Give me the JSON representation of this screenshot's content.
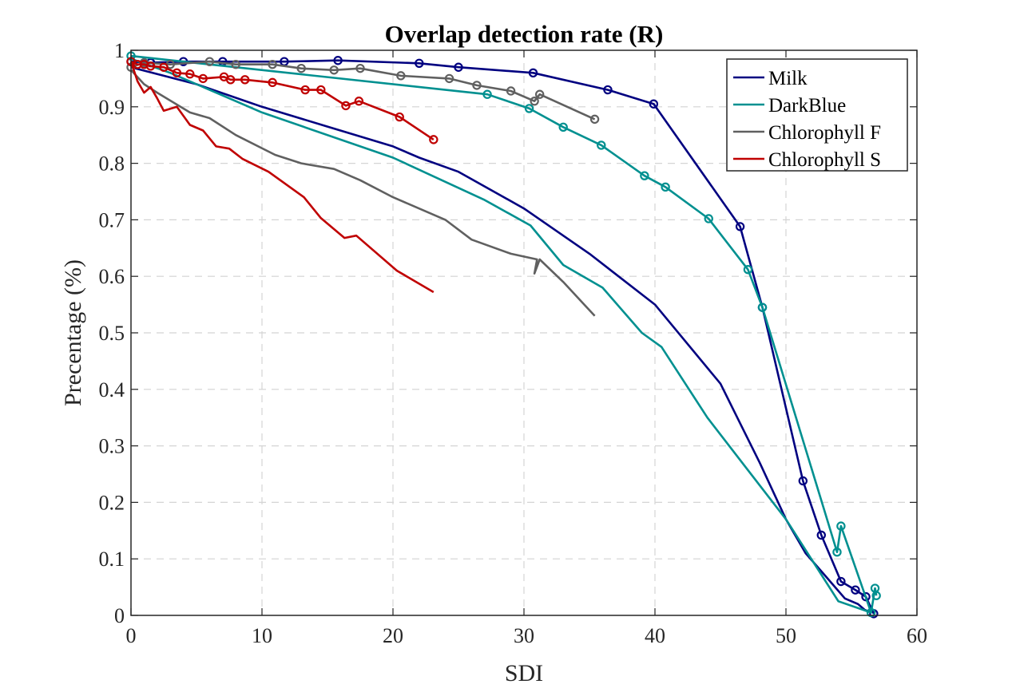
{
  "chart_data": {
    "type": "line",
    "title": "Overlap detection rate (R)",
    "xlabel": "SDI",
    "ylabel": "Precentage (%)",
    "xlim": [
      0,
      60
    ],
    "ylim": [
      0,
      1
    ],
    "xticks": [
      0,
      10,
      20,
      30,
      40,
      50,
      60
    ],
    "yticks": [
      0,
      0.1,
      0.2,
      0.3,
      0.4,
      0.5,
      0.6,
      0.7,
      0.8,
      0.9,
      1
    ],
    "xtick_labels": [
      "0",
      "10",
      "20",
      "30",
      "40",
      "50",
      "60"
    ],
    "ytick_labels": [
      "0",
      "0.1",
      "0.2",
      "0.3",
      "0.4",
      "0.5",
      "0.6",
      "0.7",
      "0.8",
      "0.9",
      "1"
    ],
    "grid": true,
    "legend_position": "top-right",
    "series": [
      {
        "name": "Milk",
        "color": "#000080",
        "marker": "none",
        "x": [
          0,
          5,
          10,
          15,
          20,
          22,
          25,
          30,
          35,
          40,
          45,
          46.5,
          48,
          50,
          51.5,
          53,
          54.5,
          55.5,
          56,
          56.5
        ],
        "y": [
          0.97,
          0.94,
          0.9,
          0.865,
          0.83,
          0.81,
          0.785,
          0.72,
          0.64,
          0.55,
          0.41,
          0.34,
          0.27,
          0.17,
          0.11,
          0.07,
          0.03,
          0.02,
          0.01,
          0.005
        ]
      },
      {
        "name": "Milk",
        "color": "#000080",
        "marker": "circle",
        "x": [
          0,
          1.5,
          4,
          7,
          11.7,
          15.8,
          22,
          25,
          30.7,
          36.4,
          39.9,
          46.5,
          48.2,
          51.3,
          52.7,
          54.2,
          55.3,
          56.1,
          56.7
        ],
        "y": [
          0.98,
          0.978,
          0.98,
          0.98,
          0.98,
          0.982,
          0.977,
          0.97,
          0.96,
          0.93,
          0.905,
          0.688,
          0.545,
          0.238,
          0.142,
          0.06,
          0.045,
          0.033,
          0.003
        ]
      },
      {
        "name": "DarkBlue",
        "color": "#009090",
        "marker": "none",
        "x": [
          0,
          3,
          10,
          20,
          27,
          30.5,
          33,
          36,
          39,
          40.5,
          44,
          47,
          50,
          54,
          56.5
        ],
        "y": [
          0.985,
          0.96,
          0.89,
          0.81,
          0.735,
          0.69,
          0.62,
          0.58,
          0.5,
          0.475,
          0.35,
          0.26,
          0.17,
          0.025,
          0.005
        ]
      },
      {
        "name": "DarkBlue",
        "color": "#009090",
        "marker": "circle",
        "x": [
          0,
          27.2,
          30.4,
          33,
          35.9,
          39.2,
          40.8,
          44.1,
          47.1,
          48.2,
          53.9,
          54.2,
          56.5,
          56.8,
          56.9
        ],
        "y": [
          0.99,
          0.922,
          0.897,
          0.864,
          0.832,
          0.778,
          0.758,
          0.702,
          0.612,
          0.545,
          0.112,
          0.158,
          0.005,
          0.048,
          0.035
        ]
      },
      {
        "name": "Chlorophyll F",
        "color": "#606060",
        "marker": "none",
        "x": [
          0,
          1,
          2,
          4.5,
          6,
          8,
          11,
          13,
          15.5,
          17.5,
          20,
          24,
          26,
          29,
          31,
          30.8,
          31.2,
          33,
          35.4
        ],
        "y": [
          0.965,
          0.94,
          0.925,
          0.89,
          0.88,
          0.85,
          0.815,
          0.8,
          0.79,
          0.77,
          0.74,
          0.7,
          0.665,
          0.64,
          0.63,
          0.605,
          0.63,
          0.59,
          0.53
        ]
      },
      {
        "name": "Chlorophyll F",
        "color": "#606060",
        "marker": "circle",
        "x": [
          0,
          1,
          3,
          6,
          8,
          10.8,
          13,
          15.5,
          17.5,
          20.6,
          24.3,
          26.4,
          29,
          30.8,
          31.2,
          35.4
        ],
        "y": [
          0.97,
          0.978,
          0.975,
          0.98,
          0.975,
          0.975,
          0.968,
          0.965,
          0.968,
          0.955,
          0.95,
          0.938,
          0.928,
          0.91,
          0.922,
          0.878
        ]
      },
      {
        "name": "Chlorophyll S",
        "color": "#C00000",
        "marker": "none",
        "x": [
          0,
          0.5,
          1,
          1.5,
          2,
          2.5,
          3.5,
          4.5,
          5.5,
          6.5,
          7.5,
          8.5,
          10.5,
          13.2,
          14.5,
          16.3,
          17.2,
          20.3,
          23.1
        ],
        "y": [
          0.98,
          0.945,
          0.925,
          0.935,
          0.915,
          0.893,
          0.9,
          0.868,
          0.858,
          0.83,
          0.826,
          0.808,
          0.785,
          0.74,
          0.703,
          0.668,
          0.672,
          0.61,
          0.572
        ]
      },
      {
        "name": "Chlorophyll S",
        "color": "#C00000",
        "marker": "circle",
        "x": [
          0,
          0.5,
          1,
          1.5,
          2.5,
          3.5,
          4.5,
          5.5,
          7.1,
          7.6,
          8.7,
          10.8,
          13.3,
          14.5,
          16.4,
          17.4,
          20.5,
          23.1
        ],
        "y": [
          0.98,
          0.975,
          0.975,
          0.972,
          0.97,
          0.96,
          0.958,
          0.95,
          0.953,
          0.948,
          0.948,
          0.943,
          0.93,
          0.93,
          0.902,
          0.91,
          0.882,
          0.842
        ]
      }
    ],
    "legend": [
      {
        "label": "Milk",
        "color": "#000080"
      },
      {
        "label": "DarkBlue",
        "color": "#009090"
      },
      {
        "label": "Chlorophyll F",
        "color": "#606060"
      },
      {
        "label": "Chlorophyll S",
        "color": "#C00000"
      }
    ]
  }
}
